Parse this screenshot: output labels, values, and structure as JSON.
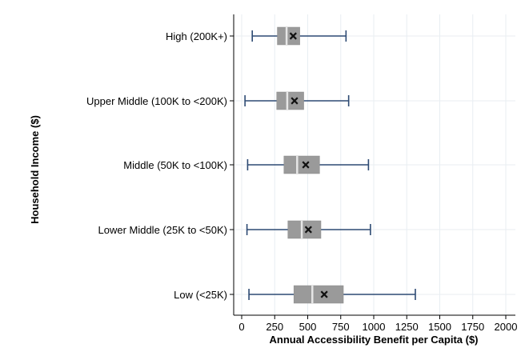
{
  "chart_data": {
    "type": "boxplot",
    "orientation": "horizontal",
    "title": "",
    "xlabel": "Annual Accessibility Benefit per Capita ($)",
    "ylabel": "Household Income ($)",
    "xlim": [
      0,
      2000
    ],
    "xticks": [
      0,
      250,
      500,
      750,
      1000,
      1250,
      1500,
      1750,
      2000
    ],
    "grid": "vertical-and-horizontal",
    "categories": [
      "High (200K+)",
      "Upper Middle (100K to <200K)",
      "Middle (50K to <100K)",
      "Lower Middle (25K to <50K)",
      "Low (<25K)"
    ],
    "series": [
      {
        "category": "High (200K+)",
        "whisker_low": 80,
        "q1": 270,
        "median": 340,
        "q3": 440,
        "whisker_high": 790,
        "mean": 390
      },
      {
        "category": "Upper Middle (100K to <200K)",
        "whisker_low": 25,
        "q1": 265,
        "median": 345,
        "q3": 470,
        "whisker_high": 810,
        "mean": 400
      },
      {
        "category": "Middle (50K to <100K)",
        "whisker_low": 45,
        "q1": 320,
        "median": 420,
        "q3": 590,
        "whisker_high": 960,
        "mean": 485
      },
      {
        "category": "Lower Middle (25K to <50K)",
        "whisker_low": 40,
        "q1": 350,
        "median": 455,
        "q3": 600,
        "whisker_high": 975,
        "mean": 505
      },
      {
        "category": "Low (<25K)",
        "whisker_low": 55,
        "q1": 395,
        "median": 535,
        "q3": 770,
        "whisker_high": 1315,
        "mean": 625
      }
    ],
    "colors": {
      "background": "#ffffff",
      "plot_background": "#ffffff",
      "grid": "#e8eef2",
      "box_fill": "#9a9a9a",
      "median_line": "#e6e6e6",
      "whisker": "#2d4a73",
      "mean_marker": "#111111",
      "axis": "#000000"
    }
  }
}
